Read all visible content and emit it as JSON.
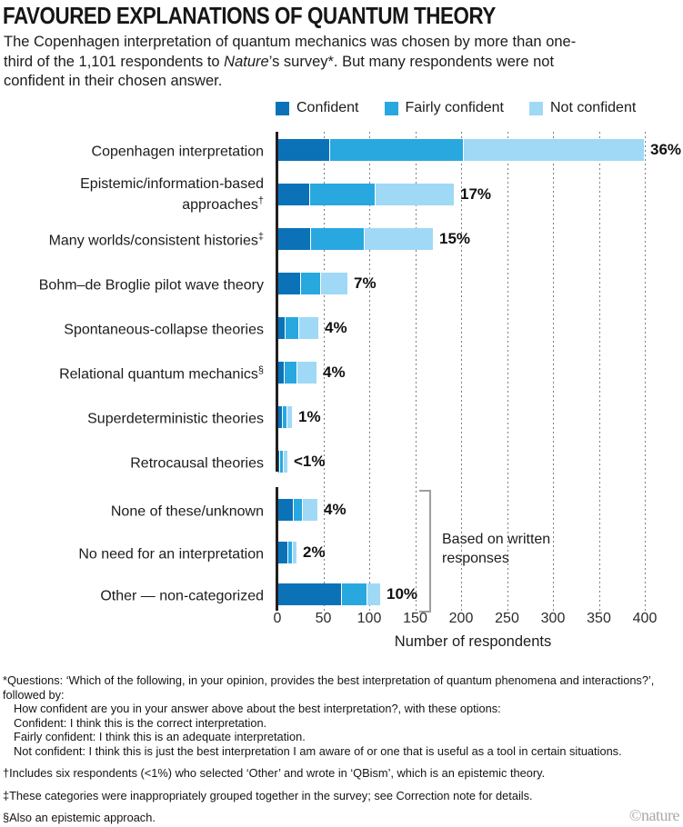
{
  "header": {
    "title": "FAVOURED EXPLANATIONS OF QUANTUM THEORY",
    "subtitle_part1": "The Copenhagen interpretation of quantum mechanics was chosen by more than one-third of the 1,101 respondents to ",
    "subtitle_italic": "Nature",
    "subtitle_part2": "’s survey*. But many respondents were not confident in their chosen answer."
  },
  "chart_data": {
    "type": "bar",
    "stacked": true,
    "orientation": "horizontal",
    "title": "FAVOURED EXPLANATIONS OF QUANTUM THEORY",
    "xlabel": "Number of respondents",
    "xlim": [
      0,
      400
    ],
    "xticks": [
      0,
      50,
      100,
      150,
      200,
      250,
      300,
      350,
      400
    ],
    "gridlines": "vertical-dotted",
    "legend_position": "top",
    "series_names": [
      "Confident",
      "Fairly confident",
      "Not confident"
    ],
    "series_colors": [
      "#0b72b8",
      "#29a8e0",
      "#a0d9f6"
    ],
    "rows": [
      {
        "label": "Copenhagen interpretation",
        "mark": "",
        "values": [
          55,
          145,
          196
        ],
        "total_pct": "36%",
        "group": "main"
      },
      {
        "label": "Epistemic/information-based approaches",
        "mark": "†",
        "values": [
          34,
          70,
          85
        ],
        "total_pct": "17%",
        "group": "main"
      },
      {
        "label": "Many worlds/consistent histories",
        "mark": "‡",
        "values": [
          35,
          57,
          74
        ],
        "total_pct": "15%",
        "group": "main"
      },
      {
        "label": "Bohm–de Broglie pilot wave theory",
        "mark": "",
        "values": [
          24,
          21,
          29
        ],
        "total_pct": "7%",
        "group": "main"
      },
      {
        "label": "Spontaneous-collapse theories",
        "mark": "",
        "values": [
          7,
          14,
          21
        ],
        "total_pct": "4%",
        "group": "main"
      },
      {
        "label": "Relational quantum mechanics",
        "mark": "§",
        "values": [
          6,
          13,
          21
        ],
        "total_pct": "4%",
        "group": "main"
      },
      {
        "label": "Superdeterministic theories",
        "mark": "",
        "values": [
          4,
          4,
          5
        ],
        "total_pct": "1%",
        "group": "main"
      },
      {
        "label": "Retrocausal theories",
        "mark": "",
        "values": [
          1,
          3,
          4
        ],
        "total_pct": "<1%",
        "group": "main"
      },
      {
        "label": "None of these/unknown",
        "mark": "",
        "values": [
          16,
          9,
          16
        ],
        "total_pct": "4%",
        "group": "written"
      },
      {
        "label": "No need for an interpretation",
        "mark": "",
        "values": [
          10,
          4,
          4
        ],
        "total_pct": "2%",
        "group": "written"
      },
      {
        "label": "Other — non-categorized",
        "mark": "",
        "values": [
          68,
          27,
          14
        ],
        "total_pct": "10%",
        "group": "written"
      }
    ],
    "bracket_label": "Based on written responses"
  },
  "axis": {
    "ticks": [
      "0",
      "50",
      "100",
      "150",
      "200",
      "250",
      "300",
      "350",
      "400"
    ],
    "label": "Number of respondents"
  },
  "footnotes": [
    {
      "text": "*Questions: ‘Which of the following, in your opinion, provides the best interpretation of quantum phenomena and interactions?’, followed by:",
      "indent": false,
      "spaced": false
    },
    {
      "text": "How confident are you in your answer above about the best interpretation?, with these options:",
      "indent": true,
      "spaced": false
    },
    {
      "text": "Confident: I think this is the correct interpretation.",
      "indent": true,
      "spaced": false
    },
    {
      "text": "Fairly confident: I think this is an adequate interpretation.",
      "indent": true,
      "spaced": false
    },
    {
      "text": "Not confident: I think this is just the best interpretation I am aware of or one that is useful as a tool in certain situations.",
      "indent": true,
      "spaced": false
    },
    {
      "text": "†Includes six respondents (<1%) who selected ‘Other’ and wrote in ‘QBism’, which is an epistemic theory.",
      "indent": false,
      "spaced": true
    },
    {
      "text": "‡These categories were inappropriately grouped together in the survey; see Correction note for details.",
      "indent": false,
      "spaced": true
    },
    {
      "text": "§Also an epistemic approach.",
      "indent": false,
      "spaced": true
    }
  ],
  "credit": "©nature",
  "colors": {
    "confident": "#0b72b8",
    "fairly_confident": "#29a8e0",
    "not_confident": "#a0d9f6",
    "axis_ink": "#231f20",
    "grid": "#7d7d7d",
    "bracket": "#9e9e9e",
    "credit": "#a9a9a9"
  }
}
